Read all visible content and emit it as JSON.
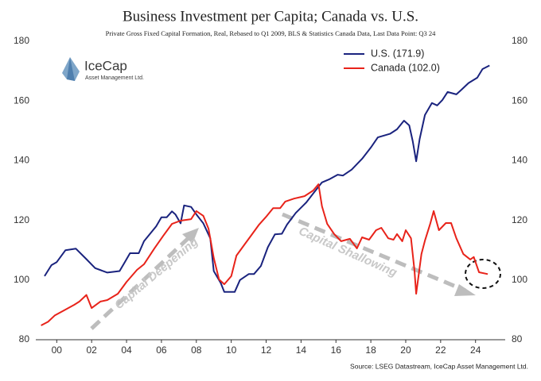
{
  "chart_data": {
    "type": "line",
    "title": "Business Investment per Capita; Canada vs. U.S.",
    "subtitle": "Private Gross Fixed Capital Formation, Real, Rebased to Q1 2009, BLS & Statistics Canada Data, Last Data Point: Q3 24",
    "source": "Source: LSEG Datastream, IceCap Asset Management Ltd.",
    "logo": {
      "name": "IceCap",
      "tagline": "Asset Management Ltd."
    },
    "annotations": [
      "Capital Deepening",
      "Capital Shallowing"
    ],
    "xlim": [
      -1.2,
      25.7
    ],
    "xticks": [
      {
        "value": 0,
        "label": "00"
      },
      {
        "value": 2,
        "label": "02"
      },
      {
        "value": 4,
        "label": "04"
      },
      {
        "value": 6,
        "label": "06"
      },
      {
        "value": 8,
        "label": "08"
      },
      {
        "value": 10,
        "label": "10"
      },
      {
        "value": 12,
        "label": "12"
      },
      {
        "value": 14,
        "label": "14"
      },
      {
        "value": 16,
        "label": "16"
      },
      {
        "value": 18,
        "label": "18"
      },
      {
        "value": 20,
        "label": "20"
      },
      {
        "value": 22,
        "label": "22"
      },
      {
        "value": 24,
        "label": "24"
      }
    ],
    "ylim": [
      80,
      180
    ],
    "yticks": [
      80,
      100,
      120,
      140,
      160,
      180
    ],
    "y2lim": [
      80,
      180
    ],
    "y2ticks": [
      80,
      100,
      120,
      140,
      160,
      180
    ],
    "legend": "upper-right",
    "series": [
      {
        "name": "U.S. (171.9)",
        "color": "#1a237e",
        "x": [
          -0.7,
          -0.3,
          0,
          0.5,
          1.1,
          1.7,
          2.2,
          2.9,
          3.6,
          3.9,
          4.2,
          4.7,
          5,
          5.7,
          6,
          6.3,
          6.6,
          6.8,
          7.1,
          7.3,
          7.7,
          8,
          8.4,
          8.8,
          9,
          9.4,
          9.6,
          10.2,
          10.5,
          11,
          11.3,
          11.7,
          12.1,
          12.5,
          12.9,
          13.2,
          13.7,
          14.3,
          14.7,
          15.2,
          15.6,
          16.1,
          16.4,
          16.9,
          17.5,
          18,
          18.4,
          19.1,
          19.5,
          19.9,
          20.2,
          20.4,
          20.6,
          20.8,
          21.1,
          21.5,
          21.8,
          22.1,
          22.4,
          22.9,
          23.2,
          23.6,
          24.1,
          24.4,
          24.8
        ],
        "values": [
          101.3,
          105,
          106,
          110,
          110.5,
          107,
          104,
          102.5,
          103,
          106,
          109,
          109,
          113,
          118,
          121,
          121,
          123,
          122,
          119,
          125,
          124.5,
          122,
          119,
          114,
          103,
          99,
          96,
          96,
          100,
          102,
          102,
          104.7,
          111,
          115.3,
          115.5,
          118.6,
          122.5,
          126,
          129,
          132.7,
          133.7,
          135.3,
          135,
          137,
          140.6,
          144.4,
          147.8,
          149,
          150.5,
          153.4,
          151.8,
          146.5,
          139.8,
          147.3,
          155.3,
          159.3,
          158.5,
          160.3,
          163,
          162.2,
          163.8,
          166,
          167.8,
          170.7,
          171.9
        ]
      },
      {
        "name": "Canada (102.0)",
        "color": "#e8231a",
        "x": [
          -0.9,
          -0.5,
          -0.1,
          0.4,
          1,
          1.3,
          1.7,
          2,
          2.5,
          2.9,
          3.5,
          4,
          4.6,
          5,
          5.6,
          6.1,
          6.6,
          7.1,
          7.7,
          8,
          8.4,
          8.7,
          9,
          9.3,
          9.6,
          10,
          10.3,
          10.8,
          11.1,
          11.6,
          12,
          12.4,
          12.8,
          13.1,
          13.6,
          14.2,
          14.7,
          15,
          15.2,
          15.5,
          15.9,
          16.3,
          16.8,
          17.2,
          17.5,
          17.9,
          18.3,
          18.6,
          19,
          19.3,
          19.5,
          19.8,
          20,
          20.3,
          20.5,
          20.6,
          20.9,
          21.1,
          21.4,
          21.6,
          21.9,
          22.3,
          22.6,
          22.9,
          23.3,
          23.7,
          23.9,
          24.2,
          24.7
        ],
        "values": [
          84.8,
          86,
          88.2,
          89.8,
          91.7,
          92.8,
          95,
          90.6,
          92.8,
          93.3,
          95.4,
          99.4,
          103.4,
          105.3,
          110.6,
          114.8,
          118.8,
          119.9,
          120.4,
          123.1,
          121.5,
          117.2,
          107.4,
          100.2,
          98.6,
          101.3,
          108.2,
          112.2,
          114.6,
          118.6,
          121.2,
          124.1,
          124.1,
          126.3,
          127.3,
          128.1,
          130,
          132.1,
          124.7,
          118.8,
          115.4,
          113,
          113.8,
          110.6,
          114.3,
          113.5,
          116.7,
          117.5,
          114,
          113.5,
          115.4,
          113,
          116.7,
          114,
          103.4,
          95.4,
          108.7,
          113.2,
          118.8,
          123.1,
          116.7,
          119.1,
          119.1,
          114,
          108.7,
          106.9,
          107.7,
          102.6,
          102
        ]
      }
    ]
  }
}
